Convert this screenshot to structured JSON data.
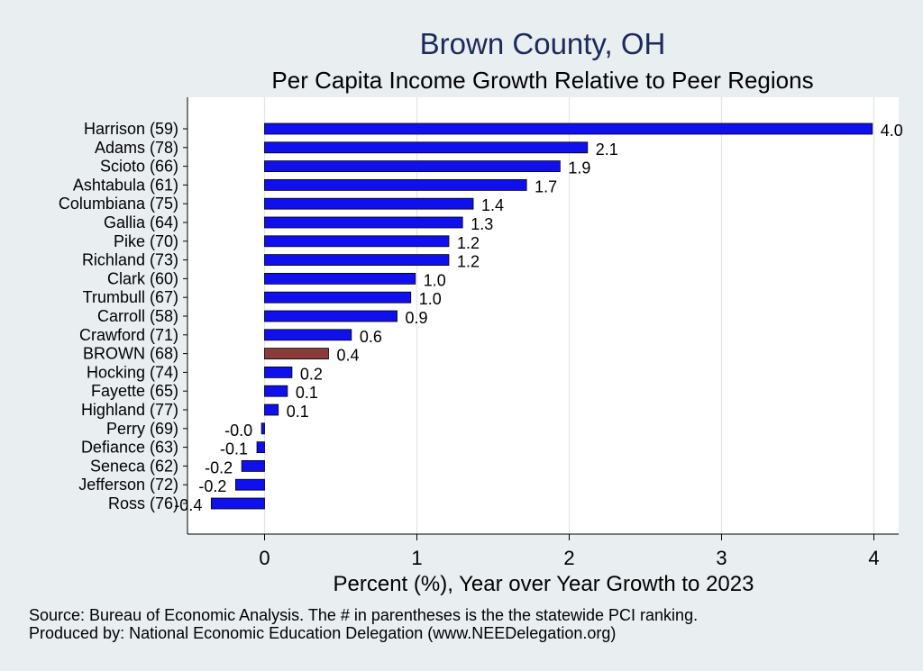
{
  "chart_data": {
    "type": "bar",
    "orientation": "horizontal",
    "title": "Brown County, OH",
    "subtitle": "Per Capita Income Growth Relative to Peer Regions",
    "xlabel": "Percent (%), Year over Year Growth to 2023",
    "ylabel": "",
    "xlim": [
      -0.5,
      4.15
    ],
    "xticks": [
      "0",
      "1",
      "2",
      "3",
      "4"
    ],
    "categories": [
      "Harrison (59)",
      "Adams (78)",
      "Scioto (66)",
      "Ashtabula (61)",
      "Columbiana (75)",
      "Gallia (64)",
      "Pike (70)",
      "Richland (73)",
      "Clark (60)",
      "Trumbull (67)",
      "Carroll (58)",
      "Crawford (71)",
      "BROWN (68)",
      "Hocking (74)",
      "Fayette (65)",
      "Highland (77)",
      "Perry (69)",
      "Defiance (63)",
      "Seneca (62)",
      "Jefferson (72)",
      "Ross (76)"
    ],
    "values": [
      3.99,
      2.12,
      1.94,
      1.72,
      1.37,
      1.3,
      1.21,
      1.21,
      0.99,
      0.96,
      0.87,
      0.57,
      0.42,
      0.18,
      0.15,
      0.09,
      -0.02,
      -0.05,
      -0.15,
      -0.19,
      -0.35
    ],
    "value_labels": [
      "4.0",
      "2.1",
      "1.9",
      "1.7",
      "1.4",
      "1.3",
      "1.2",
      "1.2",
      "1.0",
      "1.0",
      "0.9",
      "0.6",
      "0.4",
      "0.2",
      "0.1",
      "0.1",
      "-0.0",
      "-0.1",
      "-0.2",
      "-0.2",
      "-0.4"
    ],
    "highlight": "BROWN (68)",
    "colors": {
      "bar": "#1010ee",
      "highlight": "#8b3a3a",
      "background": "#e9eef1",
      "plot_background": "#ffffff",
      "grid": "#dfe7ea"
    },
    "grid": true
  },
  "notes": {
    "source": "Source: Bureau of Economic Analysis. The # in parentheses is the the statewide PCI ranking.",
    "produced_by": "Produced by: National Economic Education Delegation (www.NEEDelegation.org)"
  }
}
